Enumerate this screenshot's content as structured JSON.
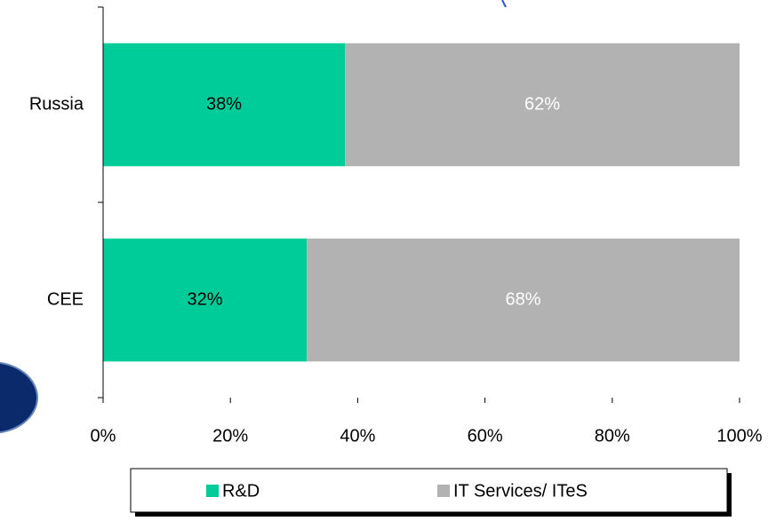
{
  "chart_data": {
    "type": "stacked-barh",
    "categories": [
      "Russia",
      "CEE"
    ],
    "series": [
      {
        "name": "R&D",
        "color": "#00cc99",
        "label_color": "#000000",
        "values": [
          38,
          32
        ],
        "value_labels": [
          "38%",
          "32%"
        ]
      },
      {
        "name": "IT Services/ ITeS",
        "color": "#b2b2b2",
        "label_color": "#ffffff",
        "values": [
          62,
          68
        ],
        "value_labels": [
          "62%",
          "68%"
        ]
      }
    ],
    "xlim": [
      0,
      100
    ],
    "xticks": [
      {
        "value": 0,
        "label": "0%"
      },
      {
        "value": 20,
        "label": "20%"
      },
      {
        "value": 40,
        "label": "40%"
      },
      {
        "value": 60,
        "label": "60%"
      },
      {
        "value": 80,
        "label": "80%"
      },
      {
        "value": 100,
        "label": "100%"
      }
    ],
    "legend": "bottom"
  }
}
